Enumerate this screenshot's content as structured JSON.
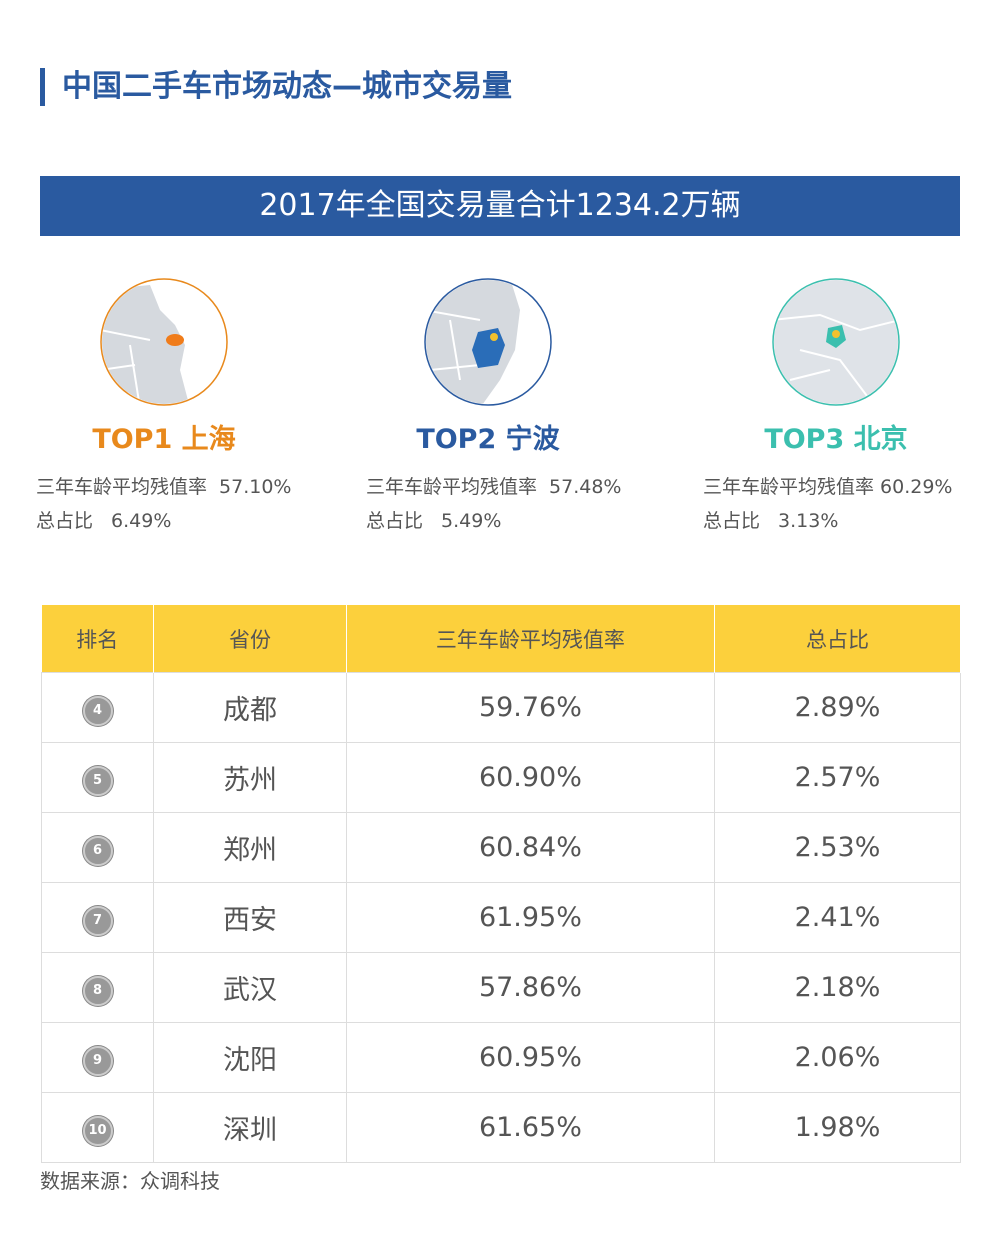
{
  "header": {
    "title": "中国二手车市场动态—城市交易量"
  },
  "banner": "2017年全国交易量合计1234.2万辆",
  "top3": [
    {
      "title": "TOP1 上海",
      "residual_label": "三年车龄平均残值率",
      "residual": "57.10%",
      "share_label": "总占比",
      "share": "6.49%"
    },
    {
      "title": "TOP2 宁波",
      "residual_label": "三年车龄平均残值率",
      "residual": "57.48%",
      "share_label": "总占比",
      "share": "5.49%"
    },
    {
      "title": "TOP3 北京",
      "residual_label": "三年车龄平均残值率",
      "residual": "60.29%",
      "share_label": "总占比",
      "share": "3.13%"
    }
  ],
  "table": {
    "headers": [
      "排名",
      "省份",
      "三年车龄平均残值率",
      "总占比"
    ],
    "rows": [
      [
        "4",
        "成都",
        "59.76%",
        "2.89%"
      ],
      [
        "5",
        "苏州",
        "60.90%",
        "2.57%"
      ],
      [
        "6",
        "郑州",
        "60.84%",
        "2.53%"
      ],
      [
        "7",
        "西安",
        "61.95%",
        "2.41%"
      ],
      [
        "8",
        "武汉",
        "57.86%",
        "2.18%"
      ],
      [
        "9",
        "沈阳",
        "60.95%",
        "2.06%"
      ],
      [
        "10",
        "深圳",
        "61.65%",
        "1.98%"
      ]
    ]
  },
  "source": "数据来源：众调科技"
}
